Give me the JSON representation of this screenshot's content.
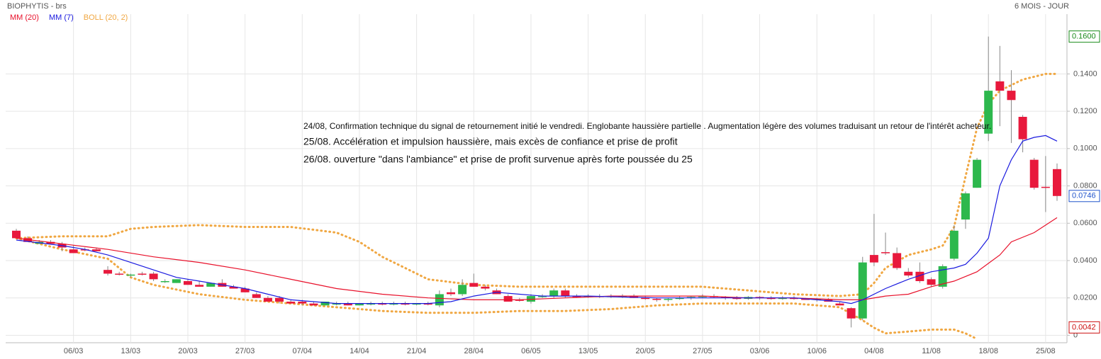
{
  "header": {
    "title": "BIOPHYTIS - brs",
    "period": "6 MOIS - JOUR"
  },
  "chart_data": {
    "type": "candlestick",
    "categories": [
      null,
      null,
      null,
      null,
      null,
      "06/03",
      null,
      null,
      null,
      null,
      "13/03",
      null,
      null,
      null,
      null,
      "20/03",
      null,
      null,
      null,
      null,
      "27/03",
      null,
      null,
      null,
      null,
      "07/04",
      null,
      null,
      null,
      null,
      "14/04",
      null,
      null,
      null,
      null,
      "21/04",
      null,
      null,
      null,
      null,
      "28/04",
      null,
      null,
      null,
      null,
      "06/05",
      null,
      null,
      null,
      null,
      "13/05",
      null,
      null,
      null,
      null,
      "20/05",
      null,
      null,
      null,
      null,
      "27/05",
      null,
      null,
      null,
      null,
      "03/06",
      null,
      null,
      null,
      null,
      "10/06",
      null,
      null,
      null,
      null,
      "04/08",
      null,
      null,
      null,
      null,
      "11/08",
      null,
      null,
      null,
      null,
      "18/08",
      null,
      null,
      null,
      null,
      "25/08",
      null
    ],
    "candles": [
      [
        0.056,
        0.057,
        0.052,
        0.052
      ],
      [
        0.052,
        0.053,
        0.05,
        0.05
      ],
      [
        0.049,
        0.051,
        0.049,
        0.05
      ],
      [
        0.05,
        0.051,
        0.049,
        0.049
      ],
      [
        0.049,
        0.05,
        0.045,
        0.047
      ],
      [
        0.046,
        0.048,
        0.044,
        0.044
      ],
      [
        0.046,
        0.047,
        0.045,
        0.0455
      ],
      [
        0.046,
        0.047,
        0.045,
        0.045
      ],
      [
        0.035,
        0.037,
        0.032,
        0.033
      ],
      [
        0.033,
        0.034,
        0.032,
        0.0325
      ],
      [
        0.032,
        0.033,
        0.031,
        0.0325
      ],
      [
        0.033,
        0.034,
        0.032,
        0.0325
      ],
      [
        0.033,
        0.034,
        0.029,
        0.03
      ],
      [
        0.029,
        0.03,
        0.028,
        0.029
      ],
      [
        0.028,
        0.03,
        0.028,
        0.03
      ],
      [
        0.029,
        0.03,
        0.027,
        0.027
      ],
      [
        0.027,
        0.029,
        0.026,
        0.026
      ],
      [
        0.026,
        0.028,
        0.026,
        0.028
      ],
      [
        0.028,
        0.03,
        0.026,
        0.026
      ],
      [
        0.026,
        0.027,
        0.025,
        0.025
      ],
      [
        0.025,
        0.026,
        0.023,
        0.023
      ],
      [
        0.022,
        0.023,
        0.02,
        0.02
      ],
      [
        0.02,
        0.021,
        0.018,
        0.018
      ],
      [
        0.02,
        0.021,
        0.017,
        0.018
      ],
      [
        0.018,
        0.019,
        0.017,
        0.017
      ],
      [
        0.018,
        0.019,
        0.016,
        0.017
      ],
      [
        0.017,
        0.018,
        0.016,
        0.016
      ],
      [
        0.016,
        0.018,
        0.016,
        0.018
      ],
      [
        0.017,
        0.018,
        0.016,
        0.017
      ],
      [
        0.017,
        0.018,
        0.016,
        0.016
      ],
      [
        0.016,
        0.017,
        0.016,
        0.017
      ],
      [
        0.017,
        0.018,
        0.016,
        0.017
      ],
      [
        0.017,
        0.018,
        0.016,
        0.0165
      ],
      [
        0.0165,
        0.018,
        0.016,
        0.017
      ],
      [
        0.017,
        0.018,
        0.016,
        0.0165
      ],
      [
        0.0165,
        0.017,
        0.016,
        0.017
      ],
      [
        0.017,
        0.018,
        0.016,
        0.0165
      ],
      [
        0.016,
        0.024,
        0.015,
        0.022
      ],
      [
        0.023,
        0.025,
        0.021,
        0.022
      ],
      [
        0.022,
        0.03,
        0.021,
        0.027
      ],
      [
        0.028,
        0.033,
        0.026,
        0.026
      ],
      [
        0.026,
        0.027,
        0.024,
        0.025
      ],
      [
        0.024,
        0.025,
        0.022,
        0.022
      ],
      [
        0.021,
        0.022,
        0.018,
        0.018
      ],
      [
        0.019,
        0.02,
        0.018,
        0.0185
      ],
      [
        0.018,
        0.022,
        0.017,
        0.021
      ],
      [
        0.021,
        0.022,
        0.02,
        0.021
      ],
      [
        0.021,
        0.025,
        0.02,
        0.024
      ],
      [
        0.024,
        0.025,
        0.02,
        0.021
      ],
      [
        0.021,
        0.022,
        0.02,
        0.0205
      ],
      [
        0.0205,
        0.022,
        0.02,
        0.021
      ],
      [
        0.021,
        0.022,
        0.02,
        0.0205
      ],
      [
        0.0205,
        0.022,
        0.02,
        0.021
      ],
      [
        0.021,
        0.022,
        0.02,
        0.021
      ],
      [
        0.021,
        0.022,
        0.02,
        0.02
      ],
      [
        0.02,
        0.021,
        0.019,
        0.0195
      ],
      [
        0.0195,
        0.02,
        0.018,
        0.019
      ],
      [
        0.019,
        0.02,
        0.018,
        0.0195
      ],
      [
        0.0195,
        0.021,
        0.019,
        0.02
      ],
      [
        0.02,
        0.021,
        0.019,
        0.0205
      ],
      [
        0.0205,
        0.022,
        0.02,
        0.021
      ],
      [
        0.021,
        0.022,
        0.02,
        0.0205
      ],
      [
        0.0205,
        0.021,
        0.019,
        0.02
      ],
      [
        0.02,
        0.021,
        0.019,
        0.0195
      ],
      [
        0.0195,
        0.021,
        0.019,
        0.0205
      ],
      [
        0.0205,
        0.021,
        0.019,
        0.02
      ],
      [
        0.02,
        0.021,
        0.019,
        0.0195
      ],
      [
        0.0195,
        0.021,
        0.019,
        0.02
      ],
      [
        0.02,
        0.021,
        0.019,
        0.0195
      ],
      [
        0.0195,
        0.02,
        0.019,
        0.019
      ],
      [
        0.019,
        0.02,
        0.018,
        0.0195
      ],
      [
        0.019,
        0.02,
        0.018,
        0.018
      ],
      [
        0.017,
        0.018,
        0.016,
        0.016
      ],
      [
        0.0145,
        0.015,
        0.0042,
        0.009
      ],
      [
        0.009,
        0.042,
        0.008,
        0.039
      ],
      [
        0.043,
        0.065,
        0.037,
        0.039
      ],
      [
        0.0445,
        0.055,
        0.043,
        0.044
      ],
      [
        0.044,
        0.047,
        0.035,
        0.036
      ],
      [
        0.034,
        0.036,
        0.031,
        0.032
      ],
      [
        0.034,
        0.039,
        0.028,
        0.029
      ],
      [
        0.03,
        0.031,
        0.026,
        0.027
      ],
      [
        0.026,
        0.038,
        0.025,
        0.037
      ],
      [
        0.041,
        0.059,
        0.04,
        0.056
      ],
      [
        0.062,
        0.077,
        0.057,
        0.076
      ],
      [
        0.079,
        0.095,
        0.079,
        0.094
      ],
      [
        0.108,
        0.16,
        0.104,
        0.131
      ],
      [
        0.136,
        0.155,
        0.112,
        0.131
      ],
      [
        0.131,
        0.142,
        0.103,
        0.126
      ],
      [
        0.117,
        0.118,
        0.098,
        0.105
      ],
      [
        0.094,
        0.095,
        0.078,
        0.079
      ],
      [
        0.0795,
        0.096,
        0.066,
        0.079
      ],
      [
        0.089,
        0.092,
        0.072,
        0.0746
      ]
    ],
    "up_color": "#2db84d",
    "down_color": "#e8193c",
    "lines": [
      {
        "name": "MM (20)",
        "color": "#e8102a",
        "x": [
          0,
          4,
          8,
          12,
          16,
          20,
          24,
          28,
          32,
          36,
          40,
          44,
          48,
          52,
          56,
          60,
          64,
          68,
          72,
          74,
          76,
          78,
          80,
          82,
          84,
          86,
          87,
          89,
          91
        ],
        "values": [
          0.052,
          0.049,
          0.046,
          0.042,
          0.039,
          0.035,
          0.03,
          0.025,
          0.022,
          0.02,
          0.019,
          0.019,
          0.02,
          0.021,
          0.021,
          0.021,
          0.02,
          0.02,
          0.019,
          0.019,
          0.021,
          0.022,
          0.026,
          0.029,
          0.034,
          0.043,
          0.05,
          0.055,
          0.063
        ]
      },
      {
        "name": "MM (7)",
        "color": "#1a1adf",
        "x": [
          0,
          4,
          6,
          8,
          10,
          12,
          14,
          16,
          18,
          20,
          22,
          24,
          26,
          28,
          32,
          36,
          38,
          40,
          42,
          44,
          46,
          50,
          56,
          62,
          68,
          72,
          73,
          74,
          76,
          78,
          80,
          82,
          83,
          84,
          85,
          86,
          87,
          88,
          89,
          90,
          91
        ],
        "values": [
          0.051,
          0.048,
          0.046,
          0.043,
          0.039,
          0.035,
          0.031,
          0.029,
          0.027,
          0.025,
          0.022,
          0.019,
          0.018,
          0.017,
          0.017,
          0.017,
          0.018,
          0.021,
          0.023,
          0.022,
          0.021,
          0.021,
          0.02,
          0.02,
          0.02,
          0.018,
          0.017,
          0.019,
          0.025,
          0.03,
          0.034,
          0.036,
          0.038,
          0.044,
          0.052,
          0.08,
          0.094,
          0.104,
          0.106,
          0.107,
          0.104
        ]
      }
    ],
    "bands": {
      "name": "BOLL (20, 2)",
      "color": "#f0a742",
      "x": [
        0,
        4,
        8,
        10,
        12,
        16,
        20,
        24,
        28,
        30,
        32,
        34,
        36,
        40,
        44,
        48,
        52,
        56,
        60,
        64,
        68,
        72,
        74,
        75,
        76,
        78,
        80,
        81,
        82,
        83,
        84,
        85,
        86,
        88,
        90,
        91
      ],
      "upper": [
        0.052,
        0.053,
        0.053,
        0.057,
        0.058,
        0.059,
        0.058,
        0.058,
        0.055,
        0.05,
        0.042,
        0.036,
        0.03,
        0.027,
        0.026,
        0.026,
        0.026,
        0.026,
        0.026,
        0.024,
        0.022,
        0.021,
        0.022,
        0.028,
        0.036,
        0.043,
        0.046,
        0.048,
        0.058,
        0.085,
        0.111,
        0.124,
        0.131,
        0.137,
        0.14,
        0.14
      ],
      "lower": [
        0.052,
        0.046,
        0.041,
        0.031,
        0.027,
        0.022,
        0.019,
        0.017,
        0.015,
        0.014,
        0.013,
        0.0125,
        0.012,
        0.012,
        0.013,
        0.013,
        0.014,
        0.016,
        0.017,
        0.017,
        0.017,
        0.015,
        0.008,
        0.004,
        0.001,
        0.002,
        0.003,
        0.003,
        0.003,
        0.001,
        -0.002,
        null,
        null,
        null,
        null,
        null
      ]
    },
    "ylim": [
      -0.004,
      0.172
    ],
    "yticks": [
      0,
      {
        "value": 0.02,
        "label": "0.0200"
      },
      {
        "value": 0.04,
        "label": "0.0400"
      },
      {
        "value": 0.06,
        "label": "0.0600"
      },
      {
        "value": 0.08,
        "label": "0.0800"
      },
      {
        "value": 0.1,
        "label": "0.1000"
      },
      {
        "value": 0.12,
        "label": "0.1200"
      },
      {
        "value": 0.14,
        "label": "0.1400"
      }
    ],
    "markers": [
      {
        "value": 0.16,
        "label": "0.1600",
        "color": "#1a8a1a"
      },
      {
        "value": 0.0746,
        "label": "0.0746",
        "color": "#2255cc"
      },
      {
        "value": 0.0042,
        "label": "0.0042",
        "color": "#cc1111"
      }
    ],
    "grid": true,
    "annotations": [
      "24/08, Confirmation technique du signal de retournement initié le vendredi. Englobante haussière partielle . Augmentation légère des volumes traduisant un retour de l'intérêt acheteur.",
      "25/08. Accélération et impulsion haussière, mais excès de confiance et prise de profit",
      "26/08. ouverture \"dans l'ambiance\" et prise de profit survenue après forte poussée du 25"
    ]
  }
}
